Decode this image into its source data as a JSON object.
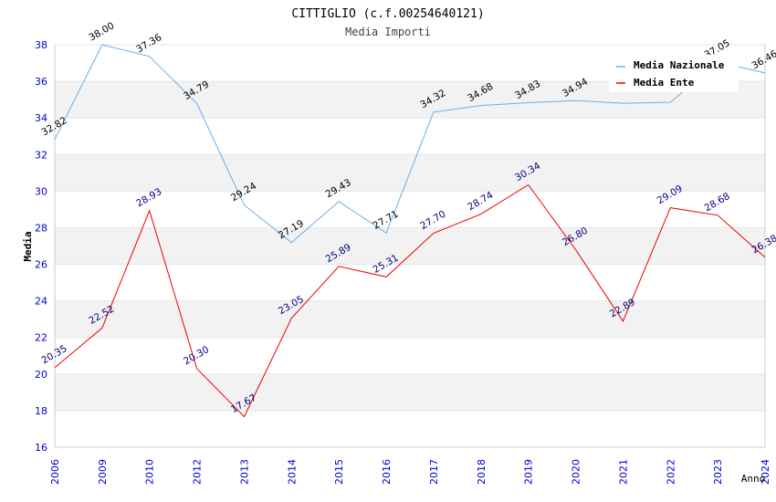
{
  "chart_data": {
    "type": "line",
    "title": "CITTIGLIO (c.f.00254640121)",
    "subtitle": "Media Importi",
    "xlabel": "Anno",
    "ylabel": "Media",
    "ylim": [
      16,
      38
    ],
    "y_ticks": [
      16,
      18,
      20,
      22,
      24,
      26,
      28,
      30,
      32,
      34,
      36,
      38
    ],
    "categories": [
      "2006",
      "2009",
      "2010",
      "2012",
      "2013",
      "2014",
      "2015",
      "2016",
      "2017",
      "2018",
      "2019",
      "2020",
      "2021",
      "2022",
      "2023",
      "2024"
    ],
    "grid": true,
    "legend_position": "top-right",
    "series": [
      {
        "name": "Media Nazionale",
        "color": "#6aaee8",
        "label_color": "#000000",
        "values": [
          32.82,
          38.0,
          37.36,
          34.79,
          29.24,
          27.19,
          29.43,
          27.71,
          34.32,
          34.68,
          34.83,
          34.94,
          34.8,
          34.85,
          37.05,
          36.46
        ],
        "labels": [
          "32.82",
          "38.00",
          "37.36",
          "34.79",
          "29.24",
          "27.19",
          "29.43",
          "27.71",
          "34.32",
          "34.68",
          "34.83",
          "34.94",
          "",
          "",
          "37.05",
          "36.46"
        ]
      },
      {
        "name": "Media Ente",
        "color": "#ee0000",
        "label_color": "#000080",
        "values": [
          20.35,
          22.52,
          28.93,
          20.3,
          17.67,
          23.05,
          25.89,
          25.31,
          27.7,
          28.74,
          30.34,
          26.8,
          22.89,
          29.09,
          28.68,
          26.38
        ],
        "labels": [
          "20.35",
          "22.52",
          "28.93",
          "20.30",
          "17.67",
          "23.05",
          "25.89",
          "25.31",
          "27.70",
          "28.74",
          "30.34",
          "26.80",
          "22.89",
          "29.09",
          "28.68",
          "26.38"
        ]
      }
    ],
    "colors": {
      "axis_tick_labels": "#0000cc",
      "band": "#f2f2f2",
      "axis": "#cccccc"
    }
  }
}
